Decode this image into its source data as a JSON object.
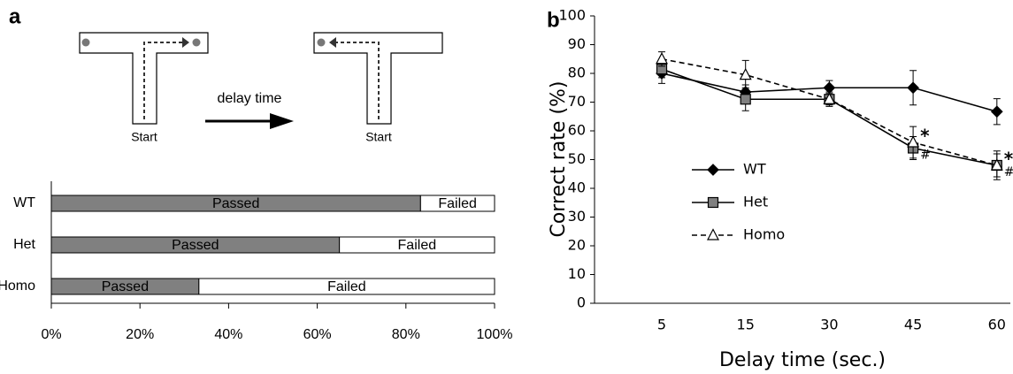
{
  "panel_labels": [
    "a",
    "b"
  ],
  "diagram": {
    "start_labels": [
      "Start",
      "Start"
    ],
    "arrow_label": "delay time"
  },
  "chart_data": [
    {
      "type": "bar",
      "orientation": "horizontal",
      "stacked": true,
      "categories": [
        "WT",
        "Het",
        "Homo"
      ],
      "series": [
        {
          "name": "Passed",
          "color": "#808080",
          "values": [
            83.3,
            65,
            33.3
          ]
        },
        {
          "name": "Failed",
          "color": "#ffffff",
          "values": [
            16.7,
            35,
            66.7
          ]
        }
      ],
      "xlim": [
        0,
        100
      ],
      "xticks": [
        {
          "value": 0,
          "label": "0%"
        },
        {
          "value": 20,
          "label": "20%"
        },
        {
          "value": 40,
          "label": "40%"
        },
        {
          "value": 60,
          "label": "60%"
        },
        {
          "value": 80,
          "label": "80%"
        },
        {
          "value": 100,
          "label": "100%"
        }
      ]
    },
    {
      "type": "line",
      "xlabel": "Delay time (sec.)",
      "ylabel": "Correct rate (%)",
      "categories": [
        "5",
        "15",
        "30",
        "45",
        "60"
      ],
      "series": [
        {
          "name": "WT",
          "color": "#000000",
          "marker": "diamond",
          "line_style": "solid",
          "values": [
            80,
            73.5,
            75,
            75,
            66.7
          ],
          "errors": [
            3.5,
            2.5,
            2.5,
            6,
            4.5
          ]
        },
        {
          "name": "Het",
          "color": "#808080",
          "marker": "square",
          "line_style": "solid",
          "values": [
            81.5,
            71,
            71,
            54,
            48
          ],
          "errors": [
            3,
            4,
            2.5,
            4,
            4
          ]
        },
        {
          "name": "Homo",
          "color": "#ffffff",
          "marker": "triangle",
          "line_style": "dashed",
          "values": [
            85,
            79.5,
            71,
            56,
            48
          ],
          "errors": [
            2.5,
            5,
            2,
            5.5,
            5
          ]
        }
      ],
      "annotations": [
        {
          "text": "*",
          "series": "Homo",
          "category": "45"
        },
        {
          "text": "#",
          "series": "Het",
          "category": "45"
        },
        {
          "text": "#",
          "series": "Het",
          "category": "60"
        },
        {
          "text": "*",
          "series": "Homo",
          "category": "60"
        }
      ],
      "ylim": [
        0,
        100
      ],
      "yticks": [
        0,
        10,
        20,
        30,
        40,
        50,
        60,
        70,
        80,
        90,
        100
      ],
      "legend": "left"
    }
  ]
}
